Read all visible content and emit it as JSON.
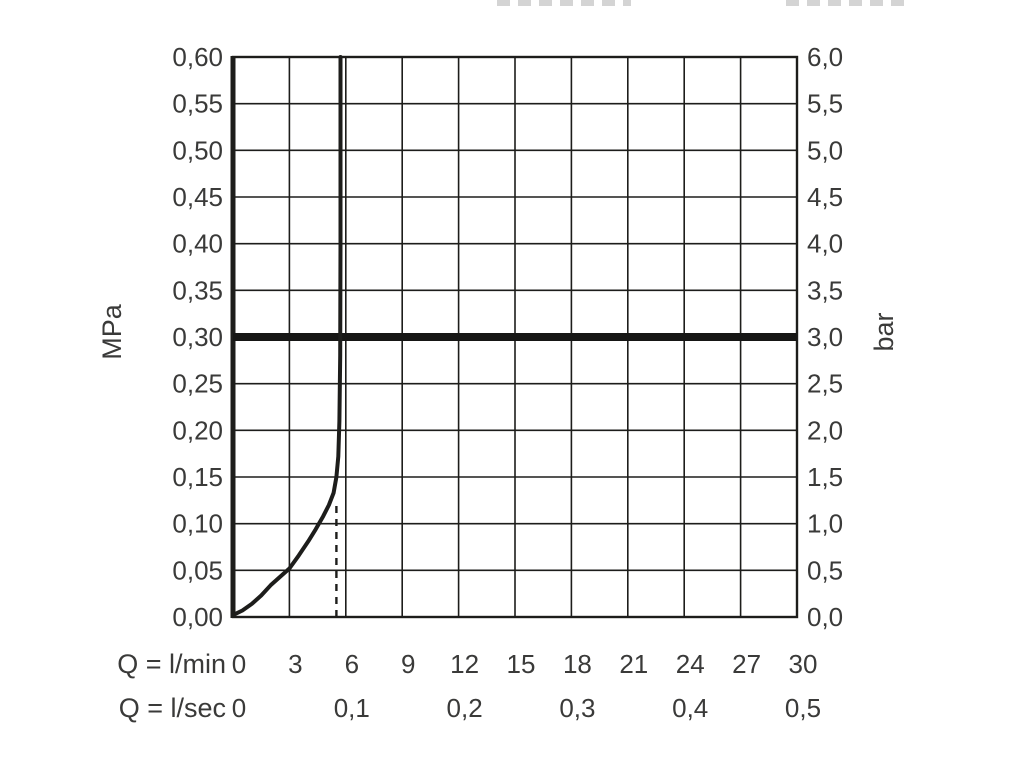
{
  "chart_data": {
    "type": "line",
    "title": "",
    "grid": {
      "x_step_lmin": 3,
      "y_step_mpa": 0.05,
      "grid_on": true
    },
    "x_axis": {
      "label_lmin": "Q = l/min",
      "label_lsec": "Q = l/sec",
      "lmin_ticks": [
        "0",
        "3",
        "6",
        "9",
        "12",
        "15",
        "18",
        "21",
        "24",
        "27",
        "30"
      ],
      "lmin_tick_values": [
        0,
        3,
        6,
        9,
        12,
        15,
        18,
        21,
        24,
        27,
        30
      ],
      "lsec_ticks": [
        "0",
        "0,1",
        "0,2",
        "0,3",
        "0,4",
        "0,5"
      ],
      "lsec_tick_values_lmin": [
        0,
        6,
        12,
        18,
        24,
        30
      ],
      "range_lmin": [
        0,
        30
      ]
    },
    "y_axis_left": {
      "label": "MPa",
      "ticks": [
        "0,60",
        "0,55",
        "0,50",
        "0,45",
        "0,40",
        "0,35",
        "0,30",
        "0,25",
        "0,20",
        "0,15",
        "0,10",
        "0,05",
        "0,00"
      ],
      "range_mpa": [
        0,
        0.6
      ]
    },
    "y_axis_right": {
      "label": "bar",
      "ticks": [
        "6,0",
        "5,5",
        "5,0",
        "4,5",
        "4,0",
        "3,5",
        "3,0",
        "2,5",
        "2,0",
        "1,5",
        "1,0",
        "0,5",
        "0,0"
      ],
      "range_bar": [
        0,
        6.0
      ]
    },
    "reference_line": {
      "y_mpa": 0.3,
      "y_bar": 3.0
    },
    "flow_curve": {
      "description": "pressure drop curve with flow limiter, vertical at ~5.7 l/min",
      "points_lmin_mpa": [
        [
          0,
          0.002
        ],
        [
          0.5,
          0.007
        ],
        [
          1,
          0.014
        ],
        [
          1.5,
          0.023
        ],
        [
          2,
          0.034
        ],
        [
          2.5,
          0.043
        ],
        [
          3,
          0.052
        ],
        [
          3.5,
          0.066
        ],
        [
          4,
          0.081
        ],
        [
          4.4,
          0.094
        ],
        [
          4.8,
          0.108
        ],
        [
          5.1,
          0.12
        ],
        [
          5.35,
          0.133
        ],
        [
          5.5,
          0.15
        ],
        [
          5.6,
          0.172
        ],
        [
          5.66,
          0.21
        ],
        [
          5.7,
          0.28
        ],
        [
          5.72,
          0.4
        ],
        [
          5.72,
          0.6
        ]
      ]
    },
    "dashed_guide": {
      "x_lmin": 5.5,
      "y_from_mpa": 0.0,
      "y_to_mpa": 0.125
    },
    "colors": {
      "line": "#1d1d1b",
      "grid": "#1d1d1b",
      "text": "#3a3a39",
      "reference": "#161615"
    }
  }
}
